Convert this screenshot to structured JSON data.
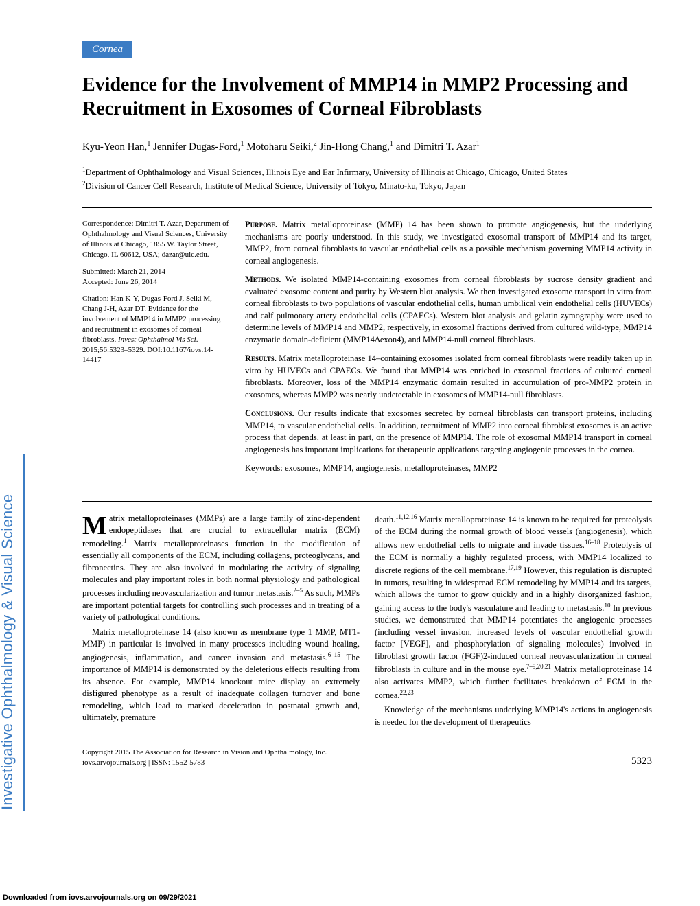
{
  "section_tag": "Cornea",
  "title": "Evidence for the Involvement of MMP14 in MMP2 Processing and Recruitment in Exosomes of Corneal Fibroblasts",
  "authors_html": "Kyu-Yeon Han,<sup>1</sup> Jennifer Dugas-Ford,<sup>1</sup> Motoharu Seiki,<sup>2</sup> Jin-Hong Chang,<sup>1</sup> and Dimitri T. Azar<sup>1</sup>",
  "affil1": "Department of Ophthalmology and Visual Sciences, Illinois Eye and Ear Infirmary, University of Illinois at Chicago, Chicago, United States",
  "affil2": "Division of Cancer Cell Research, Institute of Medical Science, University of Tokyo, Minato-ku, Tokyo, Japan",
  "correspondence": "Correspondence: Dimitri T. Azar, Department of Ophthalmology and Visual Sciences, University of Illinois at Chicago, 1855 W. Taylor Street, Chicago, IL 60612, USA; dazar@uic.edu.",
  "submitted": "Submitted: March 21, 2014",
  "accepted": "Accepted: June 26, 2014",
  "citation": "Citation: Han K-Y, Dugas-Ford J, Seiki M, Chang J-H, Azar DT. Evidence for the involvement of MMP14 in MMP2 processing and recruitment in exosomes of corneal fibroblasts. Invest Ophthalmol Vis Sci. 2015;56:5323–5329. DOI:10.1167/iovs.14-14417",
  "citation_italic": "Invest Ophthalmol Vis Sci",
  "abstract": {
    "purpose": "Matrix metalloproteinase (MMP) 14 has been shown to promote angiogenesis, but the underlying mechanisms are poorly understood. In this study, we investigated exosomal transport of MMP14 and its target, MMP2, from corneal fibroblasts to vascular endothelial cells as a possible mechanism governing MMP14 activity in corneal angiogenesis.",
    "methods": "We isolated MMP14-containing exosomes from corneal fibroblasts by sucrose density gradient and evaluated exosome content and purity by Western blot analysis. We then investigated exosome transport in vitro from corneal fibroblasts to two populations of vascular endothelial cells, human umbilical vein endothelial cells (HUVECs) and calf pulmonary artery endothelial cells (CPAECs). Western blot analysis and gelatin zymography were used to determine levels of MMP14 and MMP2, respectively, in exosomal fractions derived from cultured wild-type, MMP14 enzymatic domain-deficient (MMP14Δexon4), and MMP14-null corneal fibroblasts.",
    "results": "Matrix metalloproteinase 14–containing exosomes isolated from corneal fibroblasts were readily taken up in vitro by HUVECs and CPAECs. We found that MMP14 was enriched in exosomal fractions of cultured corneal fibroblasts. Moreover, loss of the MMP14 enzymatic domain resulted in accumulation of pro-MMP2 protein in exosomes, whereas MMP2 was nearly undetectable in exosomes of MMP14-null fibroblasts.",
    "conclusions": "Our results indicate that exosomes secreted by corneal fibroblasts can transport proteins, including MMP14, to vascular endothelial cells. In addition, recruitment of MMP2 into corneal fibroblast exosomes is an active process that depends, at least in part, on the presence of MMP14. The role of exosomal MMP14 transport in corneal angiogenesis has important implications for therapeutic applications targeting angiogenic processes in the cornea."
  },
  "keywords": "Keywords: exosomes, MMP14, angiogenesis, metalloproteinases, MMP2",
  "body": {
    "left_p1_first": "atrix metalloproteinases (MMPs) are a large family of zinc-dependent endopeptidases that are crucial to extracellular matrix (ECM) remodeling.",
    "left_p1_rest": " Matrix metalloproteinases function in the modification of essentially all components of the ECM, including collagens, proteoglycans, and fibronectins. They are also involved in modulating the activity of signaling molecules and play important roles in both normal physiology and pathological processes including neovascularization and tumor metastasis.",
    "left_p1_end": " As such, MMPs are important potential targets for controlling such processes and in treating of a variety of pathological conditions.",
    "left_p2": "Matrix metalloproteinase 14 (also known as membrane type 1 MMP, MT1-MMP) in particular is involved in many processes including wound healing, angiogenesis, inflammation, and cancer invasion and metastasis.",
    "left_p2_end": " The importance of MMP14 is demonstrated by the deleterious effects resulting from its absence. For example, MMP14 knockout mice display an extremely disfigured phenotype as a result of inadequate collagen turnover and bone remodeling, which lead to marked deceleration in postnatal growth and, ultimately, premature",
    "right_p1_a": "death.",
    "right_p1_b": " Matrix metalloproteinase 14 is known to be required for proteolysis of the ECM during the normal growth of blood vessels (angiogenesis), which allows new endothelial cells to migrate and invade tissues.",
    "right_p1_c": " Proteolysis of the ECM is normally a highly regulated process, with MMP14 localized to discrete regions of the cell membrane.",
    "right_p1_d": " However, this regulation is disrupted in tumors, resulting in widespread ECM remodeling by MMP14 and its targets, which allows the tumor to grow quickly and in a highly disorganized fashion, gaining access to the body's vasculature and leading to metastasis.",
    "right_p1_e": " In previous studies, we demonstrated that MMP14 potentiates the angiogenic processes (including vessel invasion, increased levels of vascular endothelial growth factor [VEGF], and phosphorylation of signaling molecules) involved in fibroblast growth factor (FGF)2-induced corneal neovascularization in corneal fibroblasts in culture and in the mouse eye.",
    "right_p1_f": " Matrix metalloproteinase 14 also activates MMP2, which further facilitates breakdown of ECM in the cornea.",
    "right_p2": "Knowledge of the mechanisms underlying MMP14's actions in angiogenesis is needed for the development of therapeutics"
  },
  "footer": {
    "copyright": "Copyright 2015 The Association for Research in Vision and Ophthalmology, Inc.",
    "url_issn": "iovs.arvojournals.org | ISSN: 1552-5783",
    "page": "5323"
  },
  "side_label": "Investigative Ophthalmology & Visual Science",
  "download": "Downloaded from iovs.arvojournals.org on 09/29/2021"
}
